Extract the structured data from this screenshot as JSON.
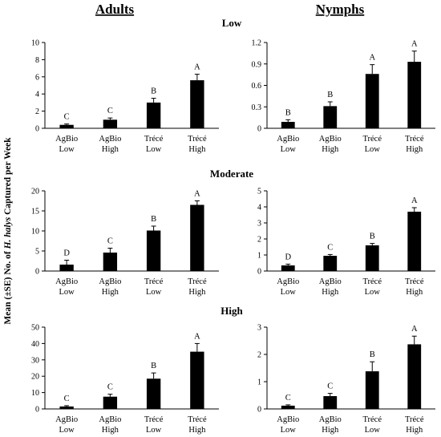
{
  "figure": {
    "column_titles": [
      "Adults",
      "Nymphs"
    ],
    "row_titles": [
      "Low",
      "Moderate",
      "High"
    ],
    "ylabel_pre": "Mean (±SE) No. of ",
    "ylabel_italic": "H. halys",
    "ylabel_post": " Captured per Week"
  },
  "chart_data": [
    {
      "type": "bar",
      "panel": "Adults / Low",
      "categories": [
        "AgBio\nLow",
        "AgBio\nHigh",
        "Trécé\nLow",
        "Trécé\nHigh"
      ],
      "values": [
        0.4,
        1.0,
        3.0,
        5.6
      ],
      "errors": [
        0.1,
        0.2,
        0.5,
        0.7
      ],
      "letters": [
        "C",
        "C",
        "B",
        "A"
      ],
      "ylim": [
        0,
        10
      ],
      "yticks": [
        0,
        2,
        4,
        6,
        8,
        10
      ],
      "ytick_labels": [
        "0",
        "2",
        "4",
        "6",
        "8",
        "10"
      ]
    },
    {
      "type": "bar",
      "panel": "Nymphs / Low",
      "categories": [
        "AgBio\nLow",
        "AgBio\nHigh",
        "Trécé\nLow",
        "Trécé\nHigh"
      ],
      "values": [
        0.09,
        0.31,
        0.76,
        0.93
      ],
      "errors": [
        0.03,
        0.06,
        0.13,
        0.15
      ],
      "letters": [
        "B",
        "B",
        "A",
        "A"
      ],
      "ylim": [
        0,
        1.2
      ],
      "yticks": [
        0,
        0.3,
        0.6,
        0.9,
        1.2
      ],
      "ytick_labels": [
        "0",
        "0.3",
        "0.6",
        "0.9",
        "1.2"
      ]
    },
    {
      "type": "bar",
      "panel": "Adults / Moderate",
      "categories": [
        "AgBio\nLow",
        "AgBio\nHigh",
        "Trécé\nLow",
        "Trécé\nHigh"
      ],
      "values": [
        1.6,
        4.6,
        10.1,
        16.5
      ],
      "errors": [
        1.1,
        1.1,
        1.1,
        1.0
      ],
      "letters": [
        "D",
        "C",
        "B",
        "A"
      ],
      "ylim": [
        0,
        20
      ],
      "yticks": [
        0,
        5,
        10,
        15,
        20
      ],
      "ytick_labels": [
        "0",
        "5",
        "10",
        "15",
        "20"
      ]
    },
    {
      "type": "bar",
      "panel": "Nymphs / Moderate",
      "categories": [
        "AgBio\nLow",
        "AgBio\nHigh",
        "Trécé\nLow",
        "Trécé\nHigh"
      ],
      "values": [
        0.35,
        0.95,
        1.6,
        3.7
      ],
      "errors": [
        0.08,
        0.08,
        0.12,
        0.25
      ],
      "letters": [
        "D",
        "C",
        "B",
        "A"
      ],
      "ylim": [
        0,
        5
      ],
      "yticks": [
        0,
        1,
        2,
        3,
        4,
        5
      ],
      "ytick_labels": [
        "0",
        "1",
        "2",
        "3",
        "4",
        "5"
      ]
    },
    {
      "type": "bar",
      "panel": "Adults / High",
      "categories": [
        "AgBio\nLow",
        "AgBio\nHigh",
        "Trécé\nLow",
        "Trécé\nHigh"
      ],
      "values": [
        1.5,
        7.5,
        18.5,
        35.0
      ],
      "errors": [
        0.5,
        1.5,
        3.5,
        5.0
      ],
      "letters": [
        "C",
        "C",
        "B",
        "A"
      ],
      "ylim": [
        0,
        50
      ],
      "yticks": [
        0,
        10,
        20,
        30,
        40,
        50
      ],
      "ytick_labels": [
        "0",
        "10",
        "20",
        "30",
        "40",
        "50"
      ]
    },
    {
      "type": "bar",
      "panel": "Nymphs / High",
      "categories": [
        "AgBio\nLow",
        "AgBio\nHigh",
        "Trécé\nLow",
        "Trécé\nHigh"
      ],
      "values": [
        0.12,
        0.47,
        1.38,
        2.37
      ],
      "errors": [
        0.03,
        0.1,
        0.35,
        0.3
      ],
      "letters": [
        "C",
        "C",
        "B",
        "A"
      ],
      "ylim": [
        0,
        3
      ],
      "yticks": [
        0,
        1,
        2,
        3
      ],
      "ytick_labels": [
        "0",
        "1",
        "2",
        "3"
      ]
    }
  ]
}
